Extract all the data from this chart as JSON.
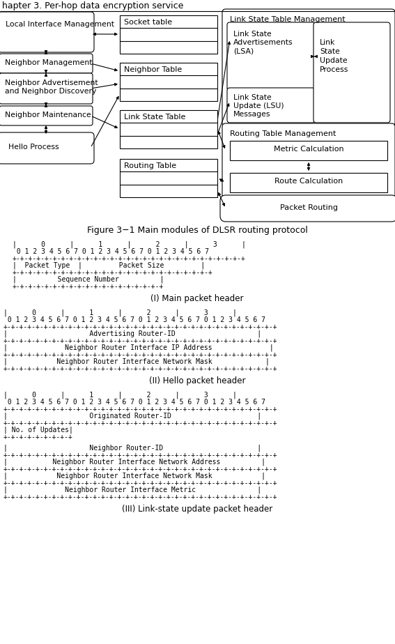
{
  "bg_color": "#ffffff",
  "text_color": "#000000",
  "fig_caption": "Figure 3−1 Main modules of DLSR routing protocol",
  "section_I_label": "(I) Main packet header",
  "section_II_label": "(II) Hello packet header",
  "section_III_label": "(III) Link-state update packet header",
  "sec1_lines": [
    "|      0      |      1      |      2      |      3      |",
    " 0 1 2 3 4 5 6 7 0 1 2 3 4 5 6 7 0 1 2 3 4 5 6 7",
    "+-+-+-+-+-+-+-+-+-+-+-+-+-+-+-+-+-+-+-+-+-+-+-+-+-+-+-+-+",
    "|  Packet Type  |         Packet Size         |",
    "+-+-+-+-+-+-+-+-+-+-+-+-+-+-+-+-+-+-+-+-+-+-+-+-+",
    "|          Sequence Number          |",
    "+-+-+-+-+-+-+-+-+-+-+-+-+-+-+-+-+-+-+"
  ],
  "sec2_lines": [
    "|      0      |      1      |      2      |      3      |",
    " 0 1 2 3 4 5 6 7 0 1 2 3 4 5 6 7 0 1 2 3 4 5 6 7 0 1 2 3 4 5 6 7",
    "+-+-+-+-+-+-+-+-+-+-+-+-+-+-+-+-+-+-+-+-+-+-+-+-+-+-+-+-+-+-+-+-+-+",
    "|                    Advertising Router-ID                    |",
    "+-+-+-+-+-+-+-+-+-+-+-+-+-+-+-+-+-+-+-+-+-+-+-+-+-+-+-+-+-+-+-+-+-+",
    "|              Neighbor Router Interface IP Address              |",
    "+-+-+-+-+-+-+-+-+-+-+-+-+-+-+-+-+-+-+-+-+-+-+-+-+-+-+-+-+-+-+-+-+-+",
    "|            Neighbor Router Interface Network Mask             |",
    "+-+-+-+-+-+-+-+-+-+-+-+-+-+-+-+-+-+-+-+-+-+-+-+-+-+-+-+-+-+-+-+-+-+"
  ],
  "sec3_lines": [
    "|      0      |      1      |      2      |      3      |",
    " 0 1 2 3 4 5 6 7 0 1 2 3 4 5 6 7 0 1 2 3 4 5 6 7 0 1 2 3 4 5 6 7",
    "+-+-+-+-+-+-+-+-+-+-+-+-+-+-+-+-+-+-+-+-+-+-+-+-+-+-+-+-+-+-+-+-+-+",
    "|                    Originated Router-ID                     |",
    "+-+-+-+-+-+-+-+-+-+-+-+-+-+-+-+-+-+-+-+-+-+-+-+-+-+-+-+-+-+-+-+-+-+",
    "| No. of Updates|",
    "+-+-+-+-+-+-+-+-+",
    "",
    "|                    Neighbor Router-ID                       |",
    "+-+-+-+-+-+-+-+-+-+-+-+-+-+-+-+-+-+-+-+-+-+-+-+-+-+-+-+-+-+-+-+-+-+",
    "|           Neighbor Router Interface Network Address          |",
    "+-+-+-+-+-+-+-+-+-+-+-+-+-+-+-+-+-+-+-+-+-+-+-+-+-+-+-+-+-+-+-+-+-+",
    "|            Neighbor Router Interface Network Mask            |",
    "+-+-+-+-+-+-+-+-+-+-+-+-+-+-+-+-+-+-+-+-+-+-+-+-+-+-+-+-+-+-+-+-+-+",
    "|              Neighbor Router Interface Metric               |",
    "+-+-+-+-+-+-+-+-+-+-+-+-+-+-+-+-+-+-+-+-+-+-+-+-+-+-+-+-+-+-+-+-+-+"
  ]
}
